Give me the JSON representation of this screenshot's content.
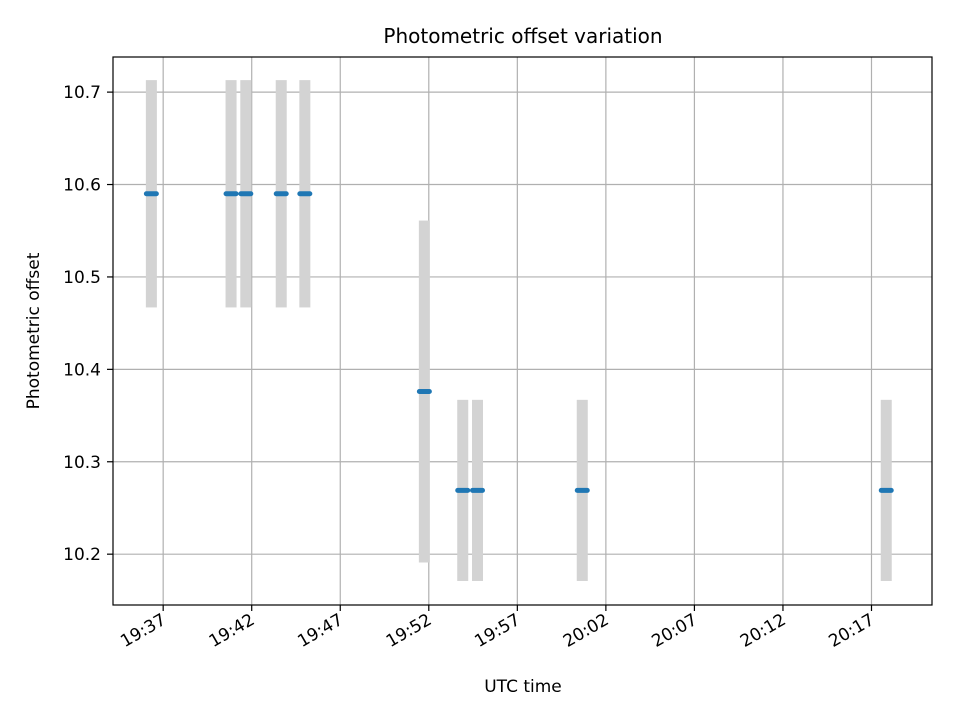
{
  "chart_data": {
    "type": "scatter",
    "title": "Photometric offset variation",
    "xlabel": "UTC time",
    "ylabel": "Photometric offset",
    "grid": true,
    "x_tick_labels": [
      "19:37",
      "19:42",
      "19:47",
      "19:52",
      "19:57",
      "20:02",
      "20:07",
      "20:12",
      "20:17"
    ],
    "y_ticks": [
      10.2,
      10.3,
      10.4,
      10.5,
      10.6,
      10.7
    ],
    "y_tick_labels": [
      "10.2",
      "10.3",
      "10.4",
      "10.5",
      "10.6",
      "10.7"
    ],
    "xlim": [
      "19:34:10",
      "20:20:25"
    ],
    "ylim": [
      10.145,
      10.738
    ],
    "marker_color": "#1f77b4",
    "errorbar_color": "#d3d3d3",
    "points": [
      {
        "time": "19:36:20",
        "y": 10.59,
        "err": 0.123
      },
      {
        "time": "19:40:50",
        "y": 10.59,
        "err": 0.123
      },
      {
        "time": "19:41:40",
        "y": 10.59,
        "err": 0.123
      },
      {
        "time": "19:43:40",
        "y": 10.59,
        "err": 0.123
      },
      {
        "time": "19:45:00",
        "y": 10.59,
        "err": 0.123
      },
      {
        "time": "19:51:45",
        "y": 10.376,
        "err": 0.185
      },
      {
        "time": "19:53:55",
        "y": 10.269,
        "err": 0.098
      },
      {
        "time": "19:54:45",
        "y": 10.269,
        "err": 0.098
      },
      {
        "time": "20:00:40",
        "y": 10.269,
        "err": 0.098
      },
      {
        "time": "20:17:50",
        "y": 10.269,
        "err": 0.098
      }
    ]
  }
}
